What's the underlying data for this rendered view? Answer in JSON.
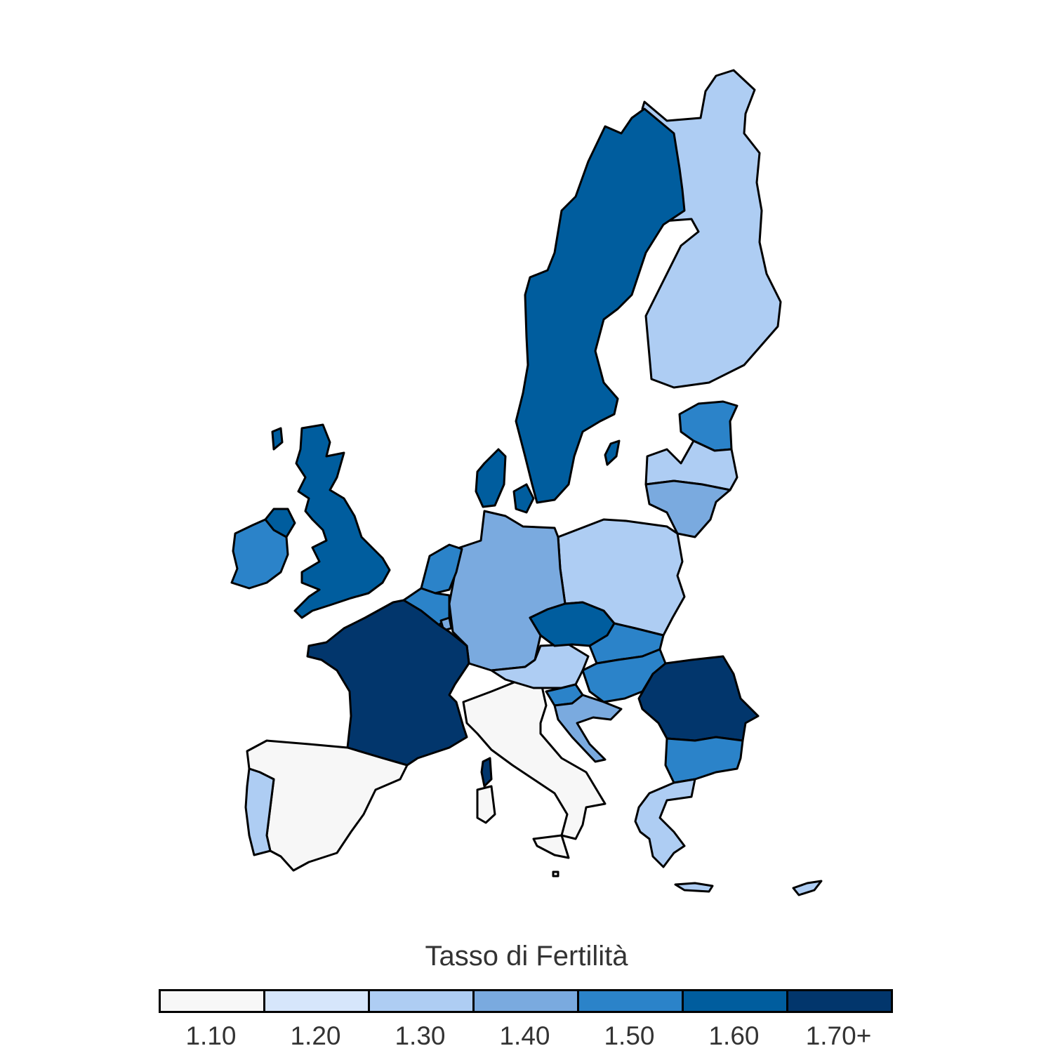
{
  "legend": {
    "title": "Tasso di Fertilità",
    "classes": [
      {
        "label": "1.10",
        "color": "#f7f7f7"
      },
      {
        "label": "1.20",
        "color": "#d6e6fb"
      },
      {
        "label": "1.30",
        "color": "#aecdf3"
      },
      {
        "label": "1.40",
        "color": "#7aaadf"
      },
      {
        "label": "1.50",
        "color": "#2b83c9"
      },
      {
        "label": "1.60",
        "color": "#005d9e"
      },
      {
        "label": "1.70+",
        "color": "#02366c"
      }
    ]
  },
  "regions": [
    {
      "id": "spain",
      "class": 0
    },
    {
      "id": "italy",
      "class": 0
    },
    {
      "id": "malta",
      "class": 0
    },
    {
      "id": "portugal",
      "class": 2
    },
    {
      "id": "finland",
      "class": 2
    },
    {
      "id": "poland",
      "class": 2
    },
    {
      "id": "austria",
      "class": 2
    },
    {
      "id": "greece",
      "class": 2
    },
    {
      "id": "cyprus",
      "class": 2
    },
    {
      "id": "lithuania",
      "class": 3
    },
    {
      "id": "latvia",
      "class": 2
    },
    {
      "id": "germany",
      "class": 3
    },
    {
      "id": "luxembourg",
      "class": 3
    },
    {
      "id": "croatia",
      "class": 3
    },
    {
      "id": "belgium",
      "class": 4
    },
    {
      "id": "netherlands",
      "class": 4
    },
    {
      "id": "estonia",
      "class": 4
    },
    {
      "id": "ireland",
      "class": 4
    },
    {
      "id": "slovakia",
      "class": 4
    },
    {
      "id": "hungary",
      "class": 4
    },
    {
      "id": "slovenia",
      "class": 4
    },
    {
      "id": "bulgaria",
      "class": 4
    },
    {
      "id": "sweden",
      "class": 5
    },
    {
      "id": "uk",
      "class": 5
    },
    {
      "id": "northern-ireland",
      "class": 5
    },
    {
      "id": "denmark",
      "class": 5
    },
    {
      "id": "czechia",
      "class": 5
    },
    {
      "id": "france",
      "class": 6
    },
    {
      "id": "corsica",
      "class": 6
    },
    {
      "id": "romania",
      "class": 6
    }
  ]
}
